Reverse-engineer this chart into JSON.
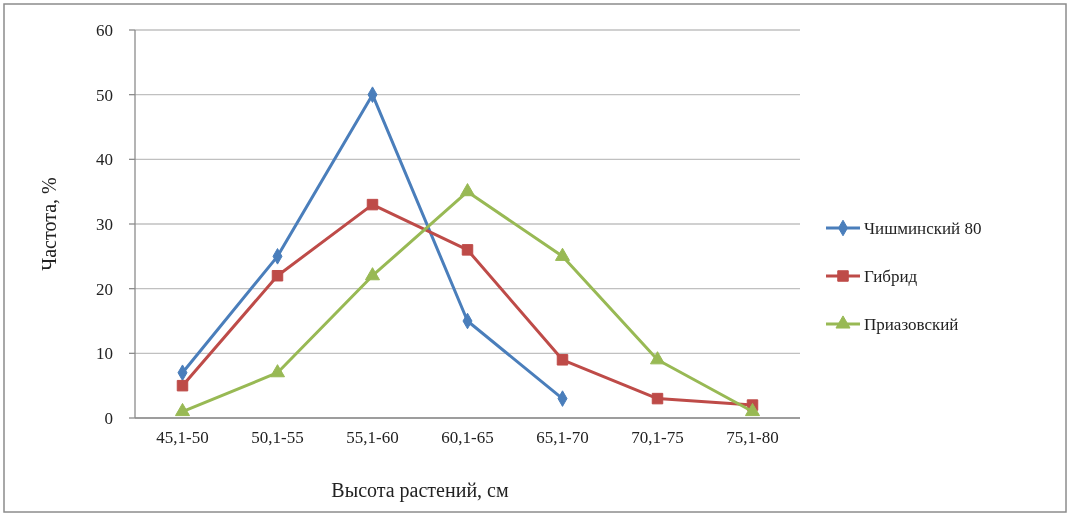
{
  "chart_data": {
    "type": "line",
    "xlabel": "Высота растений, см",
    "ylabel": "Частота, %",
    "categories": [
      "45,1-50",
      "50,1-55",
      "55,1-60",
      "60,1-65",
      "65,1-70",
      "70,1-75",
      "75,1-80"
    ],
    "series": [
      {
        "name": "Чишминский 80",
        "color": "#4a7ebb",
        "marker": "diamond",
        "values": [
          7,
          25,
          50,
          15,
          3,
          null,
          null
        ]
      },
      {
        "name": "Гибрид",
        "color": "#be4b48",
        "marker": "square",
        "values": [
          5,
          22,
          33,
          26,
          9,
          3,
          2
        ]
      },
      {
        "name": "Приазовский",
        "color": "#98b954",
        "marker": "triangle",
        "values": [
          1,
          7,
          22,
          35,
          25,
          9,
          1
        ]
      }
    ],
    "ylim": [
      0,
      60
    ],
    "yticks": [
      0,
      10,
      20,
      30,
      40,
      50,
      60
    ],
    "grid": "y",
    "legend": "right"
  }
}
